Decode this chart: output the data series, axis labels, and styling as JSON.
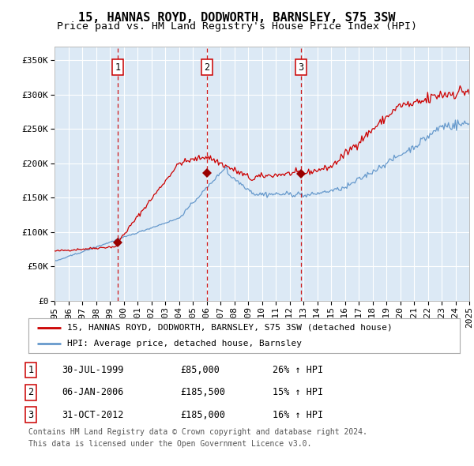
{
  "title": "15, HANNAS ROYD, DODWORTH, BARNSLEY, S75 3SW",
  "subtitle": "Price paid vs. HM Land Registry's House Price Index (HPI)",
  "background_color": "#dce9f5",
  "plot_bg_color": "#dce9f5",
  "fig_bg_color": "#ffffff",
  "red_line_color": "#cc0000",
  "blue_line_color": "#6699cc",
  "grid_color": "#ffffff",
  "dashed_line_color": "#cc0000",
  "marker_color": "#990000",
  "ylim": [
    0,
    370000
  ],
  "yticks": [
    0,
    50000,
    100000,
    150000,
    200000,
    250000,
    300000,
    350000
  ],
  "ytick_labels": [
    "£0",
    "£50K",
    "£100K",
    "£150K",
    "£200K",
    "£250K",
    "£300K",
    "£350K"
  ],
  "xmin_year": 1995,
  "xmax_year": 2025,
  "xtick_years": [
    1995,
    1996,
    1997,
    1998,
    1999,
    2000,
    2001,
    2002,
    2003,
    2004,
    2005,
    2006,
    2007,
    2008,
    2009,
    2010,
    2011,
    2012,
    2013,
    2014,
    2015,
    2016,
    2017,
    2018,
    2019,
    2020,
    2021,
    2022,
    2023,
    2024,
    2025
  ],
  "vline_years": [
    1999.58,
    2006.02,
    2012.83
  ],
  "sale_years": [
    1999.58,
    2006.02,
    2012.83
  ],
  "sale_prices": [
    85000,
    185500,
    185000
  ],
  "sale_labels": [
    "1",
    "2",
    "3"
  ],
  "legend_entries": [
    {
      "label": "15, HANNAS ROYD, DODWORTH, BARNSLEY, S75 3SW (detached house)",
      "color": "#cc0000"
    },
    {
      "label": "HPI: Average price, detached house, Barnsley",
      "color": "#6699cc"
    }
  ],
  "table_rows": [
    {
      "num": "1",
      "date": "30-JUL-1999",
      "price": "£85,000",
      "hpi": "26% ↑ HPI"
    },
    {
      "num": "2",
      "date": "06-JAN-2006",
      "price": "£185,500",
      "hpi": "15% ↑ HPI"
    },
    {
      "num": "3",
      "date": "31-OCT-2012",
      "price": "£185,000",
      "hpi": "16% ↑ HPI"
    }
  ],
  "footnote_line1": "Contains HM Land Registry data © Crown copyright and database right 2024.",
  "footnote_line2": "This data is licensed under the Open Government Licence v3.0.",
  "title_fontsize": 11,
  "subtitle_fontsize": 9.5,
  "tick_fontsize": 8,
  "legend_fontsize": 8,
  "table_fontsize": 8.5,
  "footnote_fontsize": 7
}
